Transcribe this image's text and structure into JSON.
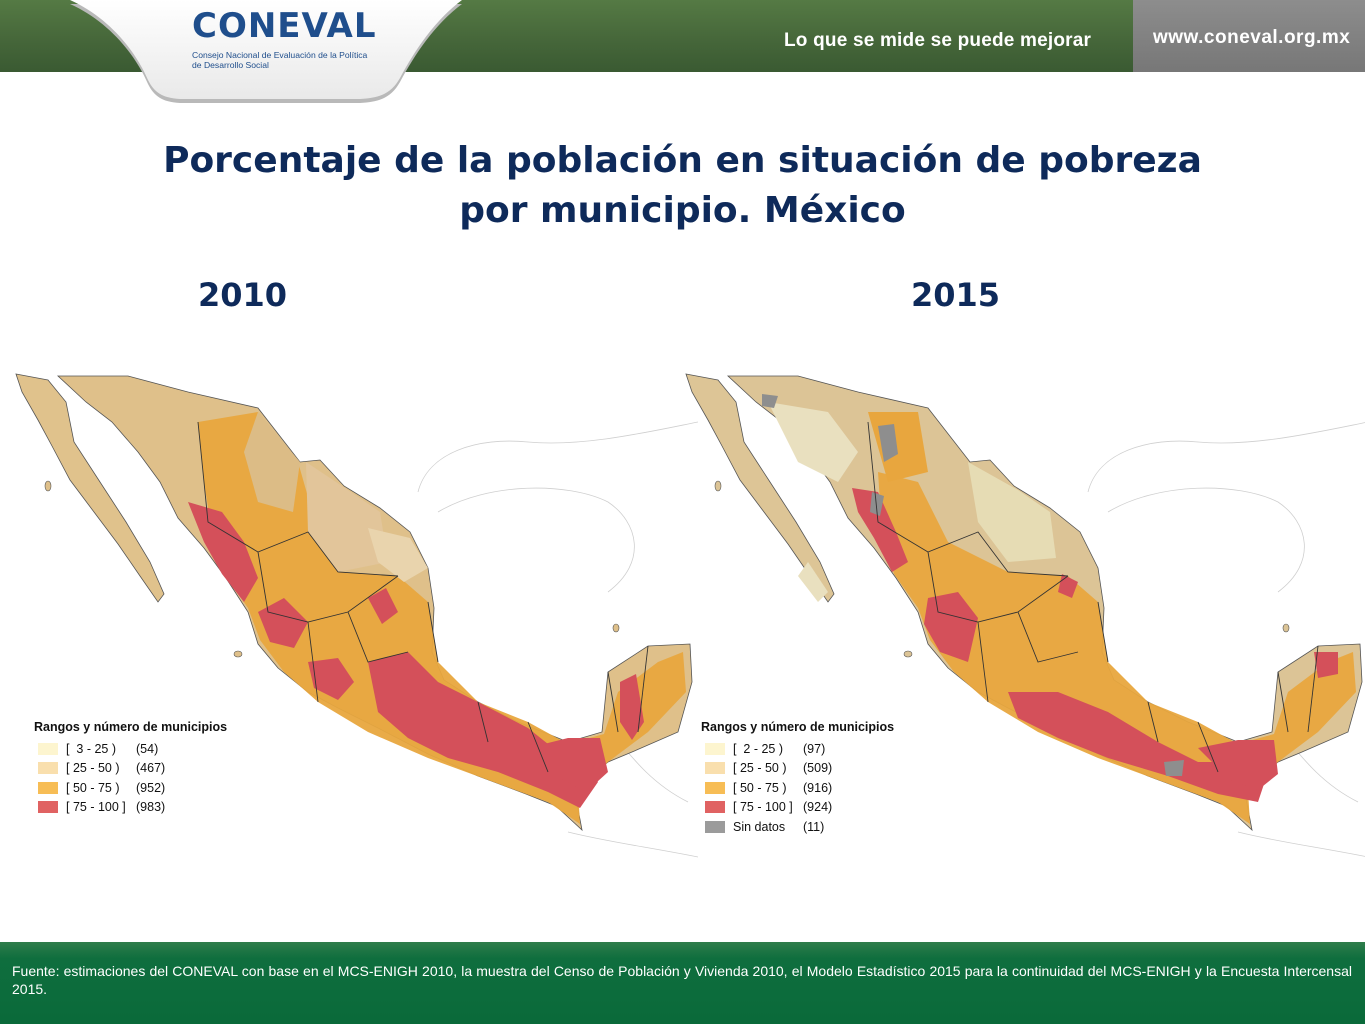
{
  "header": {
    "logo_word": "CONEVAL",
    "logo_sub": "Consejo Nacional de Evaluación de la Política de Desarrollo Social",
    "slogan": "Lo que se mide se puede mejorar",
    "url": "www.coneval.org.mx",
    "colors": {
      "band": "#46673a",
      "url_panel": "#808080",
      "logo_blue": "#1f4e8c",
      "logo_green": "#4f8a3a"
    }
  },
  "title_line1": "Porcentaje de la población en situación de pobreza",
  "title_line2": "por municipio. México",
  "maps": [
    {
      "year": "2010",
      "legend_title": "Rangos y número de municipios",
      "legend": [
        {
          "range": "[  3 - 25 )",
          "count": "(54)",
          "color": "#fdf5cf"
        },
        {
          "range": "[ 25 - 50 )",
          "count": "(467)",
          "color": "#f9dfad"
        },
        {
          "range": "[ 50 - 75 )",
          "count": "(952)",
          "color": "#f7bd55"
        },
        {
          "range": "[ 75 - 100 ]",
          "count": "(983)",
          "color": "#e06262"
        }
      ]
    },
    {
      "year": "2015",
      "legend_title": "Rangos y número de municipios",
      "legend": [
        {
          "range": "[  2 - 25 )",
          "count": "(97)",
          "color": "#fdf5cf"
        },
        {
          "range": "[ 25 - 50 )",
          "count": "(509)",
          "color": "#f9dfad"
        },
        {
          "range": "[ 50 - 75 )",
          "count": "(916)",
          "color": "#f7bd55"
        },
        {
          "range": "[ 75 - 100 ]",
          "count": "(924)",
          "color": "#e06262"
        },
        {
          "range": "Sin datos",
          "count": "(11)",
          "color": "#9b9b9b"
        }
      ]
    }
  ],
  "footer": {
    "source": "Fuente: estimaciones del CONEVAL con base en el MCS-ENIGH 2010, la muestra del Censo de Población y Vivienda 2010,  el Modelo Estadístico 2015 para la continuidad del MCS-ENIGH y la Encuesta Intercensal 2015."
  }
}
